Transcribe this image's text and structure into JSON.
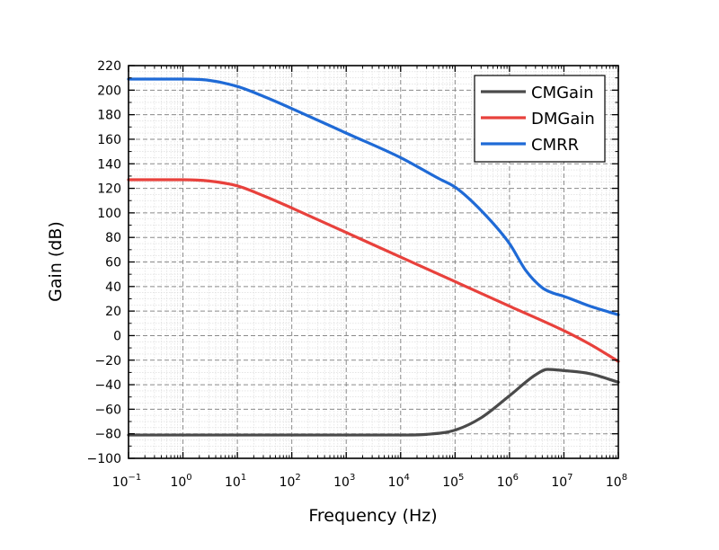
{
  "chart_data": {
    "type": "line",
    "xscale": "log",
    "xlabel": "Frequency (Hz)",
    "ylabel": "Gain (dB)",
    "xlim": [
      0.1,
      100000000
    ],
    "ylim": [
      -100,
      220
    ],
    "grid": true,
    "legend_position": "top-right",
    "x_ticks": [
      {
        "value": 0.1,
        "base": "10",
        "exp": "−1"
      },
      {
        "value": 1,
        "base": "10",
        "exp": "0"
      },
      {
        "value": 10,
        "base": "10",
        "exp": "1"
      },
      {
        "value": 100,
        "base": "10",
        "exp": "2"
      },
      {
        "value": 1000,
        "base": "10",
        "exp": "3"
      },
      {
        "value": 10000,
        "base": "10",
        "exp": "4"
      },
      {
        "value": 100000,
        "base": "10",
        "exp": "5"
      },
      {
        "value": 1000000,
        "base": "10",
        "exp": "6"
      },
      {
        "value": 10000000,
        "base": "10",
        "exp": "7"
      },
      {
        "value": 100000000,
        "base": "10",
        "exp": "8"
      }
    ],
    "y_ticks": [
      {
        "value": 220,
        "label": "220"
      },
      {
        "value": 200,
        "label": "200"
      },
      {
        "value": 180,
        "label": "180"
      },
      {
        "value": 160,
        "label": "160"
      },
      {
        "value": 140,
        "label": "140"
      },
      {
        "value": 120,
        "label": "120"
      },
      {
        "value": 100,
        "label": "100"
      },
      {
        "value": 80,
        "label": "80"
      },
      {
        "value": 60,
        "label": "60"
      },
      {
        "value": 40,
        "label": "40"
      },
      {
        "value": 20,
        "label": "20"
      },
      {
        "value": 0,
        "label": "0"
      },
      {
        "value": -20,
        "label": "−20"
      },
      {
        "value": -40,
        "label": "−40"
      },
      {
        "value": -60,
        "label": "−60"
      },
      {
        "value": -80,
        "label": "−80"
      },
      {
        "value": -100,
        "label": "−100"
      }
    ],
    "series": [
      {
        "name": "CMGain",
        "color": "#4a4a4a",
        "x": [
          0.1,
          1,
          10,
          100,
          1000,
          10000,
          30000,
          100000,
          300000,
          1000000,
          3000000,
          5000000,
          10000000,
          30000000,
          100000000
        ],
        "y": [
          -81,
          -81,
          -81,
          -81,
          -81,
          -81,
          -80.5,
          -77,
          -67,
          -49,
          -32,
          -27.5,
          -28.5,
          -31,
          -38
        ]
      },
      {
        "name": "DMGain",
        "color": "#e8413c",
        "x": [
          0.1,
          1,
          3,
          10,
          30,
          100,
          1000,
          10000,
          100000,
          1000000,
          10000000,
          30000000,
          100000000
        ],
        "y": [
          127,
          127,
          126,
          122,
          114,
          104,
          84,
          64,
          44,
          24,
          4,
          -7,
          -21
        ]
      },
      {
        "name": "CMRR",
        "color": "#1f6ad6",
        "x": [
          0.1,
          1,
          3,
          10,
          30,
          100,
          1000,
          10000,
          50000,
          100000,
          300000,
          1000000,
          2000000,
          4000000,
          6000000,
          10000000,
          30000000,
          100000000
        ],
        "y": [
          209,
          209,
          208,
          203,
          195,
          185,
          165,
          145,
          128,
          121,
          102,
          75,
          53,
          39,
          35,
          32,
          24,
          17
        ]
      }
    ]
  }
}
